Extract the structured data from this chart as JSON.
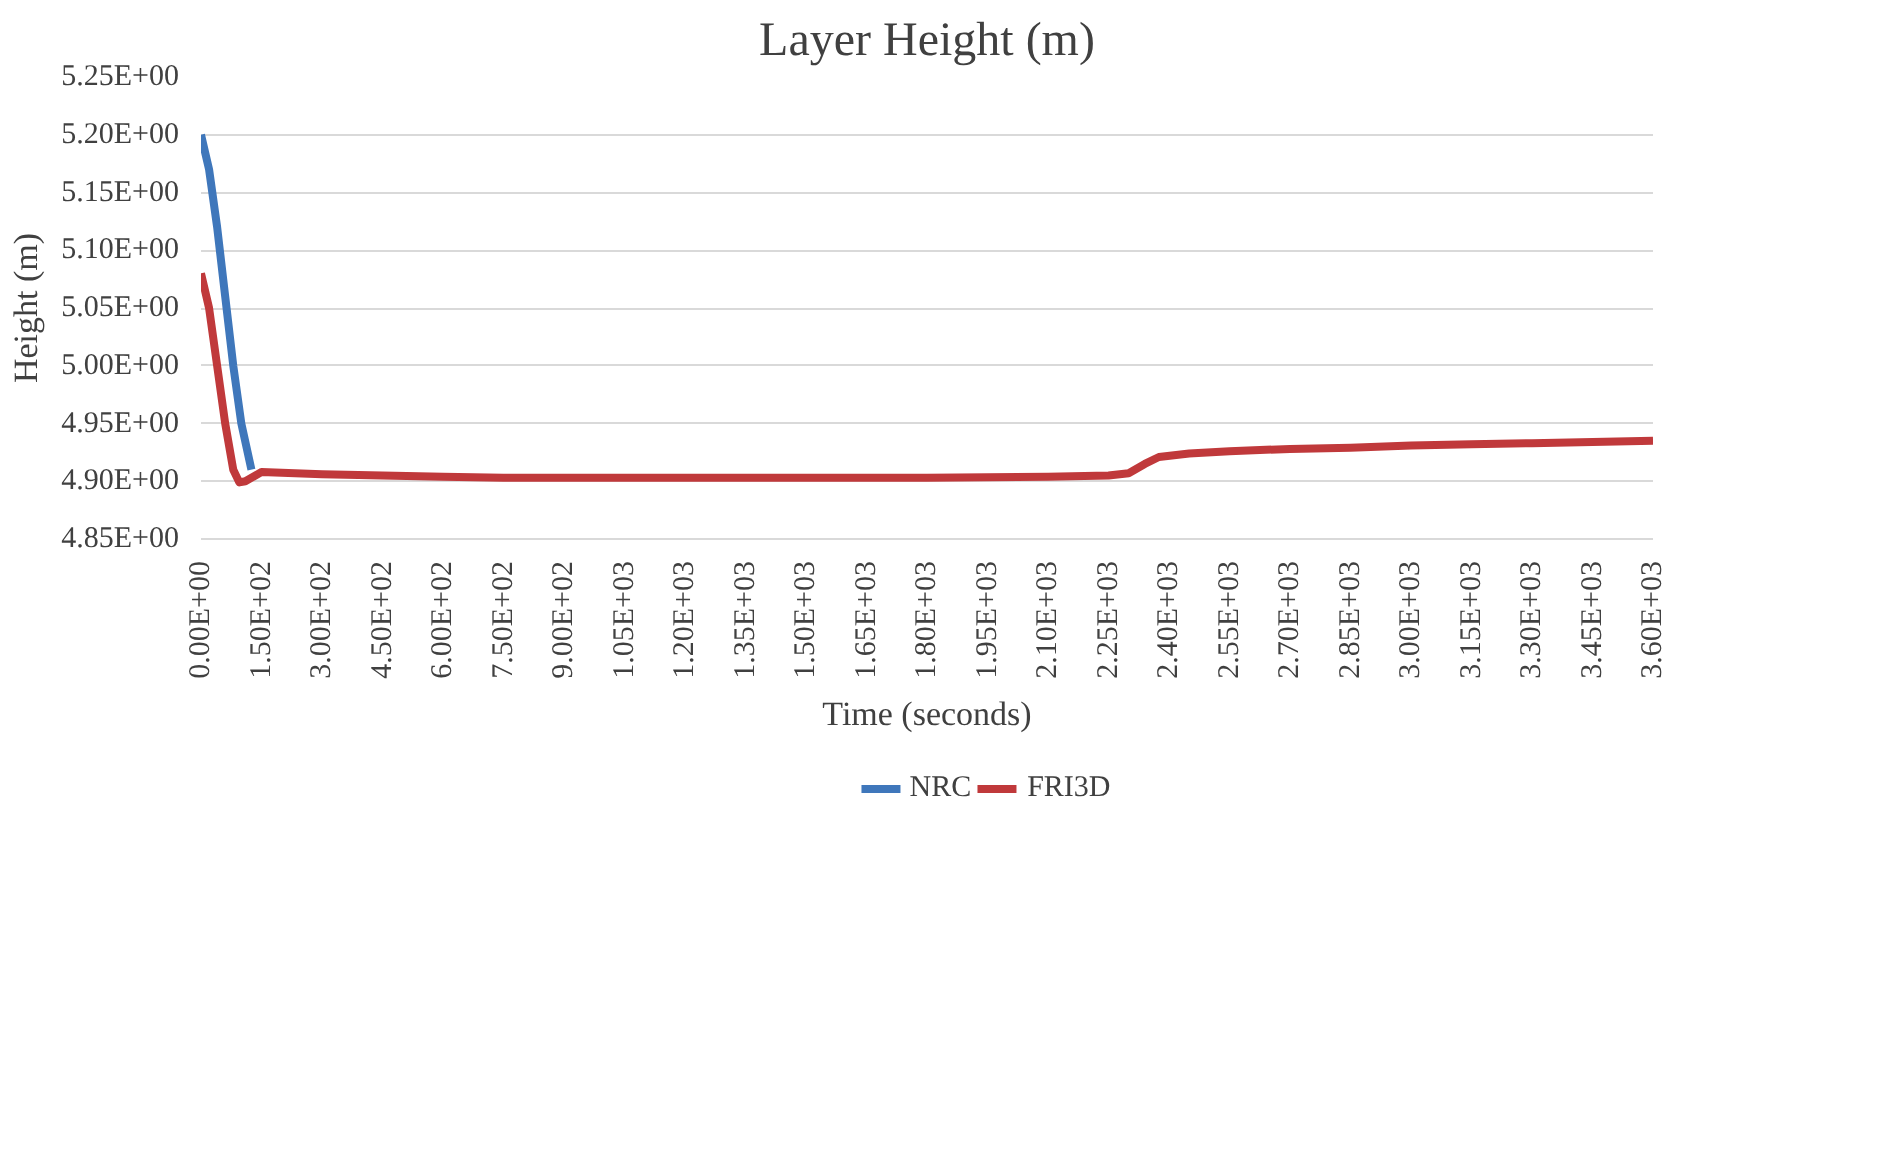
{
  "chart_data": {
    "type": "line",
    "title": "Layer Height (m)",
    "xlabel": "Time (seconds)",
    "ylabel": "Height (m)",
    "series": [
      {
        "name": "NRC",
        "color": "#3f77bb",
        "x": [
          0,
          20,
          40,
          60,
          80,
          100,
          125
        ],
        "values": [
          5.2,
          5.17,
          5.12,
          5.06,
          5.0,
          4.95,
          4.91
        ]
      },
      {
        "name": "FRI3D",
        "color": "#c0393b",
        "x": [
          0,
          20,
          40,
          60,
          80,
          95,
          110,
          150,
          300,
          450,
          600,
          750,
          900,
          1200,
          1500,
          1800,
          2100,
          2250,
          2300,
          2340,
          2375,
          2450,
          2550,
          2700,
          2850,
          3000,
          3150,
          3300,
          3450,
          3600
        ],
        "values": [
          5.08,
          5.05,
          5.0,
          4.95,
          4.91,
          4.899,
          4.9,
          4.908,
          4.906,
          4.905,
          4.904,
          4.903,
          4.903,
          4.903,
          4.903,
          4.903,
          4.904,
          4.905,
          4.907,
          4.915,
          4.921,
          4.924,
          4.926,
          4.928,
          4.929,
          4.931,
          4.932,
          4.933,
          4.934,
          4.935
        ]
      }
    ],
    "xlim": [
      0,
      3600
    ],
    "xticks": [
      {
        "value": 0,
        "label": "0.00E+00"
      },
      {
        "value": 150,
        "label": "1.50E+02"
      },
      {
        "value": 300,
        "label": "3.00E+02"
      },
      {
        "value": 450,
        "label": "4.50E+02"
      },
      {
        "value": 600,
        "label": "6.00E+02"
      },
      {
        "value": 750,
        "label": "7.50E+02"
      },
      {
        "value": 900,
        "label": "9.00E+02"
      },
      {
        "value": 1050,
        "label": "1.05E+03"
      },
      {
        "value": 1200,
        "label": "1.20E+03"
      },
      {
        "value": 1350,
        "label": "1.35E+03"
      },
      {
        "value": 1500,
        "label": "1.50E+03"
      },
      {
        "value": 1650,
        "label": "1.65E+03"
      },
      {
        "value": 1800,
        "label": "1.80E+03"
      },
      {
        "value": 1950,
        "label": "1.95E+03"
      },
      {
        "value": 2100,
        "label": "2.10E+03"
      },
      {
        "value": 2250,
        "label": "2.25E+03"
      },
      {
        "value": 2400,
        "label": "2.40E+03"
      },
      {
        "value": 2550,
        "label": "2.55E+03"
      },
      {
        "value": 2700,
        "label": "2.70E+03"
      },
      {
        "value": 2850,
        "label": "2.85E+03"
      },
      {
        "value": 3000,
        "label": "3.00E+03"
      },
      {
        "value": 3150,
        "label": "3.15E+03"
      },
      {
        "value": 3300,
        "label": "3.30E+03"
      },
      {
        "value": 3450,
        "label": "3.45E+03"
      },
      {
        "value": 3600,
        "label": "3.60E+03"
      }
    ],
    "ylim": [
      4.85,
      5.25
    ],
    "yticks": [
      {
        "value": 4.85,
        "label": "4.85E+00"
      },
      {
        "value": 4.9,
        "label": "4.90E+00"
      },
      {
        "value": 4.95,
        "label": "4.95E+00"
      },
      {
        "value": 5.0,
        "label": "5.00E+00"
      },
      {
        "value": 5.05,
        "label": "5.05E+00"
      },
      {
        "value": 5.1,
        "label": "5.10E+00"
      },
      {
        "value": 5.15,
        "label": "5.15E+00"
      },
      {
        "value": 5.2,
        "label": "5.20E+00"
      },
      {
        "value": 5.25,
        "label": "5.25E+00"
      }
    ],
    "grid": "y",
    "legend": "bottom",
    "marker": "none",
    "line_style": "solid"
  }
}
